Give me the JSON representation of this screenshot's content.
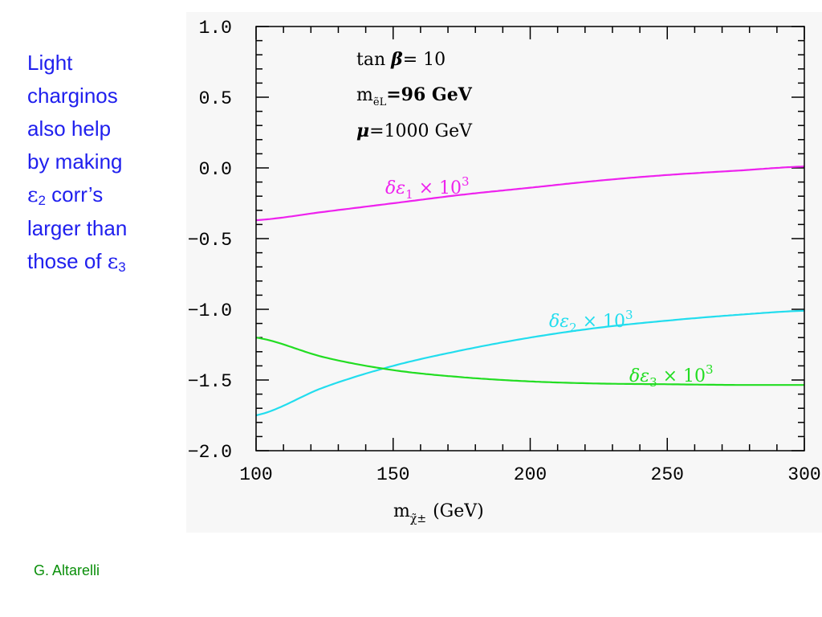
{
  "sidebar": {
    "lines": [
      "Light",
      "charginos",
      "also help",
      "by making"
    ],
    "eps_symbol": "ε",
    "eps2_sub": "2",
    "line5_suffix": " corr’s",
    "line6": "larger than",
    "line7_prefix": "those of ",
    "eps3_sub": "3"
  },
  "credit": "G. Altarelli",
  "colors": {
    "sidebar_text": "#2020ee",
    "credit_text": "#0a8f0a",
    "series1": "#ee22ee",
    "series2": "#22ddee",
    "series3": "#22dd22",
    "axes": "#000000",
    "panel_bg": "#f7f7f7"
  },
  "chart_data": {
    "type": "line",
    "title": "",
    "xlabel": "m",
    "xlabel_sub": "χ̃±",
    "xlabel_unit": "(GeV)",
    "ylabel": "",
    "xlim": [
      100,
      300
    ],
    "ylim": [
      -2.0,
      1.0
    ],
    "xticks": [
      100,
      150,
      200,
      250,
      300
    ],
    "xtick_labels": [
      "100",
      "150",
      "200",
      "250",
      "300"
    ],
    "yticks": [
      1.0,
      0.5,
      0.0,
      -0.5,
      -1.0,
      -1.5,
      -2.0
    ],
    "ytick_labels": [
      "1.0",
      "0.5",
      "0.0",
      "−0.5",
      "−1.0",
      "−1.5",
      "−2.0"
    ],
    "grid": false,
    "annotations": {
      "tan_beta": {
        "prefix": "tan ",
        "symbol": "β",
        "value": "= 10"
      },
      "m_eL": {
        "base": "m",
        "sub": "ẽL",
        "value": "=96 GeV"
      },
      "mu": {
        "symbol": "μ",
        "value": "=1000 GeV"
      }
    },
    "series": [
      {
        "name": "δε1 × 10³",
        "label": {
          "text": "δε",
          "sub": "1",
          "tail": " × 10",
          "sup": "3"
        },
        "color": "#ee22ee",
        "x": [
          100,
          125,
          150,
          175,
          200,
          225,
          250,
          275,
          300
        ],
        "y": [
          -0.37,
          -0.31,
          -0.25,
          -0.19,
          -0.14,
          -0.09,
          -0.05,
          -0.02,
          0.01
        ]
      },
      {
        "name": "δε2 × 10³",
        "label": {
          "text": "δε",
          "sub": "2",
          "tail": " × 10",
          "sup": "3"
        },
        "color": "#22ddee",
        "x": [
          100,
          125,
          150,
          175,
          200,
          225,
          250,
          275,
          300
        ],
        "y": [
          -1.75,
          -1.55,
          -1.4,
          -1.29,
          -1.2,
          -1.13,
          -1.08,
          -1.04,
          -1.01
        ]
      },
      {
        "name": "δε3 × 10³",
        "label": {
          "text": "δε",
          "sub": "3",
          "tail": " × 10",
          "sup": "3"
        },
        "color": "#22dd22",
        "x": [
          100,
          125,
          150,
          175,
          200,
          225,
          250,
          275,
          300
        ],
        "y": [
          -1.2,
          -1.34,
          -1.43,
          -1.48,
          -1.51,
          -1.525,
          -1.53,
          -1.535,
          -1.535
        ]
      }
    ]
  }
}
